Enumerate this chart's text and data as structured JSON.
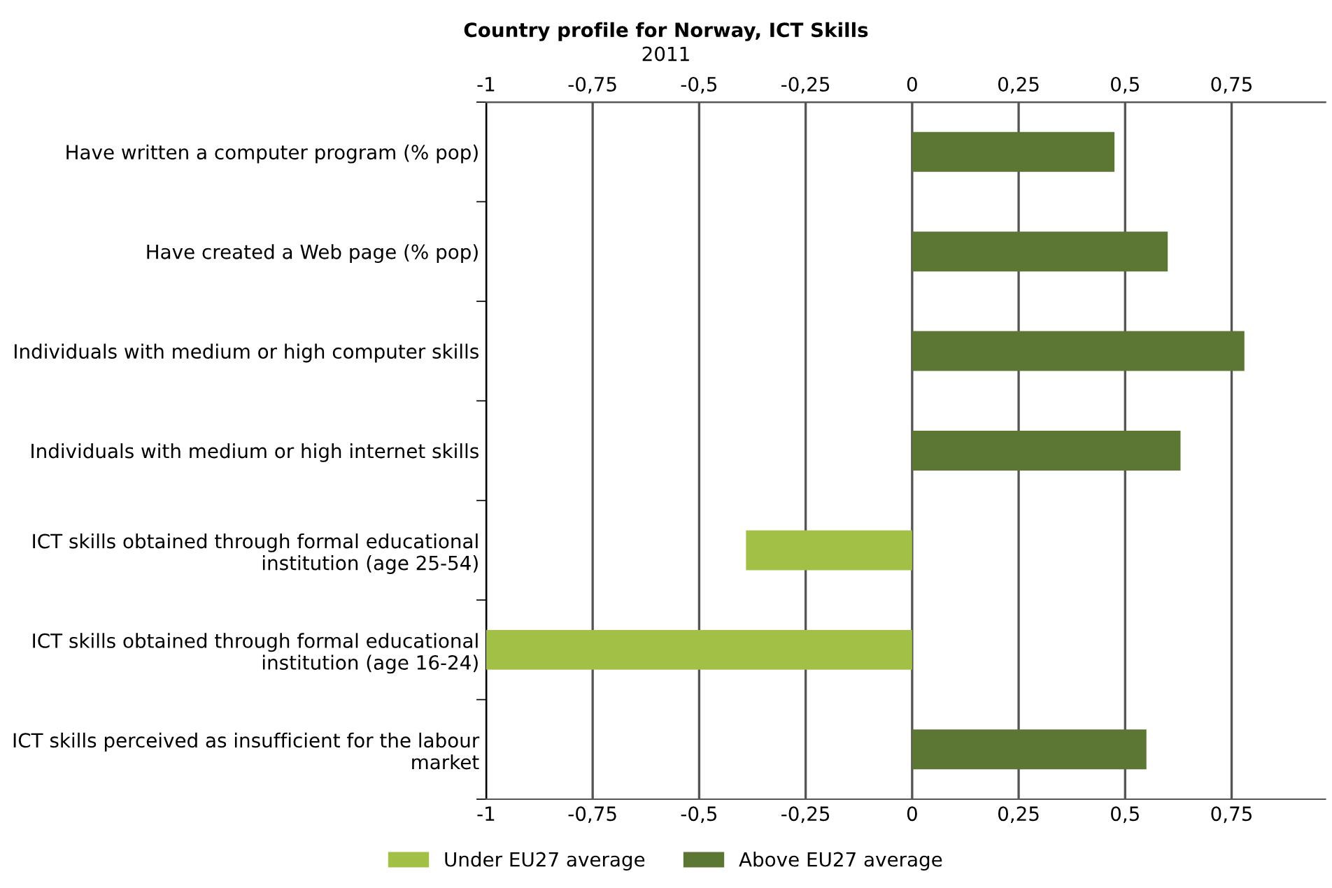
{
  "chart_data": {
    "type": "bar",
    "orientation": "horizontal",
    "title": "Country profile for Norway, ICT Skills",
    "subtitle": "2011",
    "categories": [
      "Have written a computer program (% pop)",
      "Have created a Web page (% pop)",
      "Individuals with medium or high computer skills",
      "Individuals with medium or high internet skills",
      "ICT skills obtained through formal educational\ninstitution (age 25-54)",
      "ICT skills obtained through formal educational\ninstitution (age 16-24)",
      "ICT skills perceived as insufficient for the labour\nmarket"
    ],
    "series": [
      {
        "name": "Under EU27 average",
        "color": "#a2c046",
        "values": [
          null,
          null,
          null,
          null,
          -0.39,
          -1.0,
          null
        ]
      },
      {
        "name": "Above EU27 average",
        "color": "#5c7634",
        "values": [
          0.475,
          0.6,
          0.78,
          0.63,
          null,
          null,
          0.55
        ]
      }
    ],
    "xlim": [
      -1,
      0.97
    ],
    "xticks": [
      -1,
      {
        "value": -0.75,
        "label": "-0,75"
      },
      {
        "value": -0.5,
        "label": "-0,5"
      },
      {
        "value": -0.25,
        "label": "-0,25"
      },
      0,
      {
        "value": 0.25,
        "label": "0,25"
      },
      {
        "value": 0.5,
        "label": "0,5"
      },
      {
        "value": 0.75,
        "label": "0,75"
      }
    ],
    "x2lim": [
      -1,
      0.97
    ],
    "x2ticks": [
      -1,
      {
        "value": -0.75,
        "label": "-0,75"
      },
      {
        "value": -0.5,
        "label": "-0,5"
      },
      {
        "value": -0.25,
        "label": "-0,25"
      },
      0,
      {
        "value": 0.25,
        "label": "0,25"
      },
      {
        "value": 0.5,
        "label": "0,5"
      },
      {
        "value": 0.75,
        "label": "0,75"
      }
    ],
    "grid": "x",
    "legend": "bottom"
  }
}
